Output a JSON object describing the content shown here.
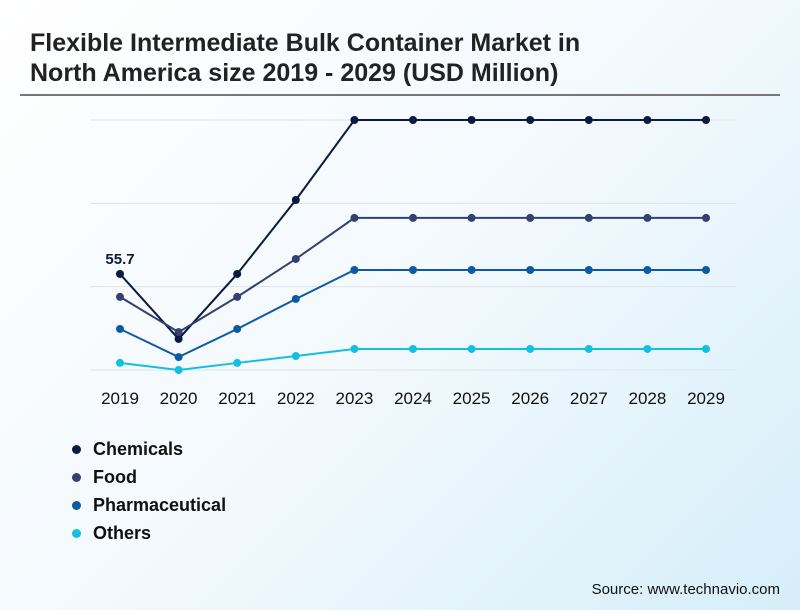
{
  "chart_data": {
    "type": "line",
    "title": "Flexible Intermediate Bulk Container Market in North America size 2019 - 2029 (USD Million)",
    "xlabel": "",
    "ylabel": "",
    "x": [
      "2019",
      "2020",
      "2021",
      "2022",
      "2023",
      "2024",
      "2025",
      "2026",
      "2027",
      "2028",
      "2029"
    ],
    "ylim": [
      0,
      145
    ],
    "grid": true,
    "legend": "bottom-left",
    "annotations": [
      {
        "series": "Chemicals",
        "x": "2019",
        "text": "55.7"
      }
    ],
    "series": [
      {
        "name": "Chemicals",
        "color": "#0b1a40",
        "values": [
          55.7,
          18.0,
          55.7,
          98.6,
          145,
          145,
          145,
          145,
          145,
          145,
          145
        ]
      },
      {
        "name": "Food",
        "color": "#34406e",
        "values": [
          42.4,
          22.0,
          42.4,
          64.4,
          88.2,
          88.2,
          88.2,
          88.2,
          88.2,
          88.2,
          88.2
        ]
      },
      {
        "name": "Pharmaceutical",
        "color": "#0c5aa6",
        "values": [
          23.8,
          7.5,
          23.8,
          41.2,
          58.0,
          58.0,
          58.0,
          58.0,
          58.0,
          58.0,
          58.0
        ]
      },
      {
        "name": "Others",
        "color": "#14c0e0",
        "values": [
          4.1,
          0,
          4.1,
          8.1,
          12.2,
          12.2,
          12.2,
          12.2,
          12.2,
          12.2,
          12.2
        ]
      }
    ]
  },
  "source": "Source: www.technavio.com"
}
